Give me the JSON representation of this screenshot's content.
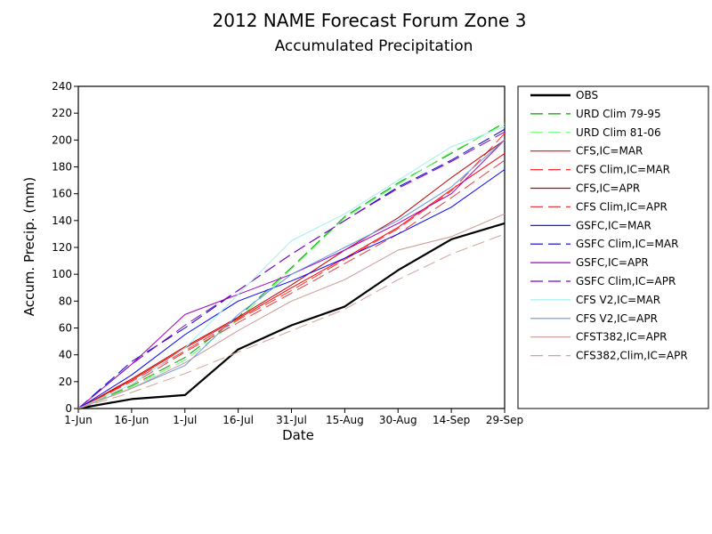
{
  "chart_data": {
    "type": "line",
    "title": "2012 NAME Forecast Forum Zone 3",
    "subtitle": "Accumulated Precipitation",
    "xlabel": "Date",
    "ylabel": "Accum. Precip. (mm)",
    "ylim": [
      0,
      240
    ],
    "yticks": [
      0,
      20,
      40,
      60,
      80,
      100,
      120,
      140,
      160,
      180,
      200,
      220,
      240
    ],
    "xlim": [
      "2012-06-01",
      "2012-09-29"
    ],
    "xticks": [
      "1-Jun",
      "16-Jun",
      "1-Jul",
      "16-Jul",
      "31-Jul",
      "15-Aug",
      "30-Aug",
      "14-Sep",
      "29-Sep"
    ],
    "x": [
      "2012-06-01",
      "2012-06-16",
      "2012-07-01",
      "2012-07-16",
      "2012-07-31",
      "2012-08-15",
      "2012-08-30",
      "2012-09-14",
      "2012-09-29"
    ],
    "legend": "right",
    "grid": false,
    "series": [
      {
        "name": "OBS",
        "color": "#000000",
        "dash": "solid",
        "values": [
          0,
          7,
          10,
          44,
          62,
          76,
          103,
          126,
          138
        ]
      },
      {
        "name": "URD Clim 79-95",
        "color": "#00a000",
        "dash": "dashed",
        "values": [
          0,
          17,
          38,
          68,
          105,
          143,
          168,
          190,
          213
        ]
      },
      {
        "name": "URD Clim 81-06",
        "color": "#66ff66",
        "dash": "dashed",
        "values": [
          0,
          16,
          36,
          66,
          104,
          142,
          167,
          191,
          212
        ]
      },
      {
        "name": "CFS,IC=MAR",
        "color": "#ff0000",
        "dash": "solid",
        "values": [
          0,
          21,
          45,
          67,
          90,
          112,
          135,
          163,
          190
        ]
      },
      {
        "name": "CFS Clim,IC=MAR",
        "color": "#ff3030",
        "dash": "dashed",
        "values": [
          0,
          20,
          43,
          66,
          88,
          111,
          134,
          162,
          205
        ]
      },
      {
        "name": "CFS,IC=APR",
        "color": "#c00000",
        "dash": "solid",
        "values": [
          0,
          22,
          46,
          68,
          92,
          118,
          142,
          172,
          200
        ]
      },
      {
        "name": "CFS Clim,IC=APR",
        "color": "#e04040",
        "dash": "dashed",
        "values": [
          0,
          18,
          42,
          64,
          86,
          108,
          130,
          157,
          185
        ]
      },
      {
        "name": "GSFC,IC=MAR",
        "color": "#0000ff",
        "dash": "solid",
        "values": [
          0,
          25,
          55,
          80,
          95,
          112,
          130,
          150,
          178
        ]
      },
      {
        "name": "GSFC Clim,IC=MAR",
        "color": "#0000c8",
        "dash": "dashed",
        "values": [
          0,
          35,
          60,
          88,
          115,
          140,
          165,
          185,
          208
        ]
      },
      {
        "name": "GSFC,IC=APR",
        "color": "#a000c0",
        "dash": "solid",
        "values": [
          0,
          33,
          70,
          85,
          100,
          118,
          138,
          160,
          200
        ]
      },
      {
        "name": "GSFC Clim,IC=APR",
        "color": "#8000c0",
        "dash": "dashed",
        "values": [
          0,
          33,
          62,
          88,
          115,
          140,
          164,
          184,
          206
        ]
      },
      {
        "name": "CFS V2,IC=MAR",
        "color": "#a0f0f0",
        "dash": "solid",
        "values": [
          0,
          18,
          45,
          85,
          125,
          145,
          170,
          195,
          210
        ]
      },
      {
        "name": "CFS V2,IC=APR",
        "color": "#6496e6",
        "dash": "solid",
        "values": [
          0,
          15,
          32,
          70,
          100,
          120,
          140,
          165,
          200
        ]
      },
      {
        "name": "CFST382,IC=APR",
        "color": "#c89690",
        "dash": "solid",
        "values": [
          0,
          15,
          34,
          58,
          80,
          96,
          118,
          128,
          145
        ]
      },
      {
        "name": "CFS382,Clim,IC=APR",
        "color": "#d2a096",
        "dash": "dashed",
        "values": [
          0,
          12,
          26,
          42,
          58,
          74,
          96,
          115,
          130
        ]
      }
    ]
  }
}
